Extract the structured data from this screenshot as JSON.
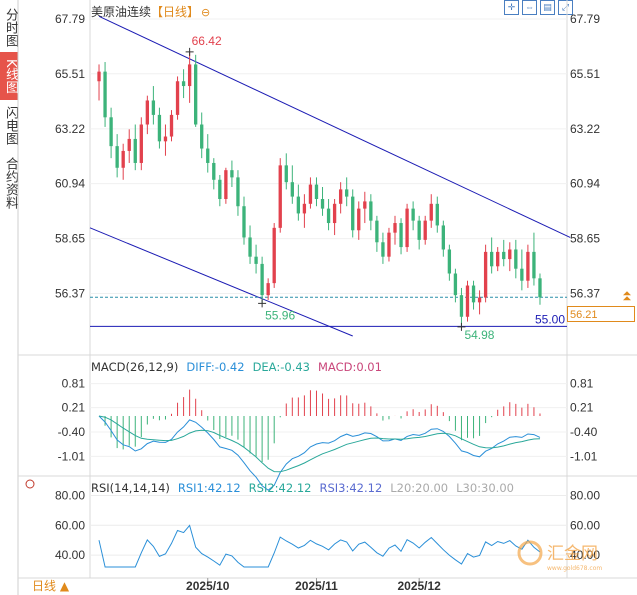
{
  "sidebar": {
    "tabs": [
      {
        "label": "分时图",
        "active": false
      },
      {
        "label": "K线图",
        "active": true
      },
      {
        "label": "闪电图",
        "active": false
      },
      {
        "label": "合约资料",
        "active": false
      }
    ]
  },
  "header": {
    "name": "美原油连续",
    "timeframe": "【日线】",
    "tools": [
      "crosshair-icon",
      "expand-icon",
      "chart-icon",
      "fullscreen-icon"
    ]
  },
  "current_price": "56.21",
  "bottom_tab": "日线",
  "watermark": {
    "text": "汇金网",
    "url": "www.gold678.com"
  },
  "colors": {
    "up": "#e2414d",
    "down": "#3cb37a",
    "channel": "#1c1cb4",
    "current_line": "#2a8fa8",
    "accent": "#e08a1c"
  },
  "chart_data": [
    {
      "type": "candlestick",
      "title": "美原油连续【日线】",
      "y_ticks": [
        "67.79",
        "65.51",
        "63.22",
        "60.94",
        "58.65",
        "56.37"
      ],
      "ylim": [
        54.6,
        67.79
      ],
      "x_ticks": [
        "2025/10",
        "2025/11",
        "2025/12"
      ],
      "x_tick_index": [
        18,
        36,
        53
      ],
      "ohlc": [
        [
          65.2,
          65.9,
          64.4,
          65.6
        ],
        [
          65.6,
          66.0,
          63.3,
          63.7
        ],
        [
          63.7,
          64.1,
          62.0,
          62.5
        ],
        [
          62.5,
          63.0,
          61.2,
          61.6
        ],
        [
          61.6,
          62.6,
          61.1,
          62.3
        ],
        [
          62.3,
          63.2,
          61.8,
          62.8
        ],
        [
          62.8,
          63.4,
          61.5,
          61.8
        ],
        [
          61.8,
          63.7,
          61.5,
          63.4
        ],
        [
          63.4,
          64.6,
          63.0,
          64.4
        ],
        [
          64.4,
          65.0,
          63.4,
          63.8
        ],
        [
          63.8,
          64.1,
          62.4,
          62.7
        ],
        [
          62.7,
          63.4,
          62.1,
          62.9
        ],
        [
          62.9,
          64.0,
          62.7,
          63.8
        ],
        [
          63.8,
          65.4,
          63.6,
          65.2
        ],
        [
          65.2,
          65.7,
          64.5,
          65.0
        ],
        [
          65.0,
          66.42,
          64.3,
          65.9
        ],
        [
          65.9,
          66.3,
          63.3,
          63.4
        ],
        [
          63.4,
          63.9,
          62.0,
          62.4
        ],
        [
          62.4,
          63.0,
          61.4,
          61.8
        ],
        [
          61.8,
          62.0,
          60.7,
          61.1
        ],
        [
          61.1,
          61.3,
          60.0,
          60.3
        ],
        [
          60.3,
          61.6,
          60.1,
          61.5
        ],
        [
          61.5,
          61.9,
          60.8,
          61.2
        ],
        [
          61.2,
          61.5,
          59.6,
          60.0
        ],
        [
          60.0,
          60.4,
          58.4,
          58.7
        ],
        [
          58.7,
          59.2,
          57.6,
          57.9
        ],
        [
          57.9,
          58.4,
          57.2,
          57.6
        ],
        [
          57.6,
          57.9,
          55.96,
          56.3
        ],
        [
          56.3,
          57.0,
          56.1,
          56.8
        ],
        [
          56.8,
          59.3,
          56.6,
          59.1
        ],
        [
          59.1,
          62.0,
          58.9,
          61.7
        ],
        [
          61.7,
          62.2,
          60.7,
          61.0
        ],
        [
          61.0,
          61.7,
          60.1,
          60.4
        ],
        [
          60.4,
          60.9,
          59.4,
          59.7
        ],
        [
          59.7,
          60.5,
          59.1,
          60.1
        ],
        [
          60.1,
          61.2,
          59.9,
          60.9
        ],
        [
          60.9,
          61.2,
          60.0,
          60.3
        ],
        [
          60.3,
          60.8,
          59.6,
          59.9
        ],
        [
          59.9,
          60.3,
          59.0,
          59.3
        ],
        [
          59.3,
          60.3,
          58.8,
          60.1
        ],
        [
          60.1,
          61.0,
          59.7,
          60.7
        ],
        [
          60.7,
          61.2,
          60.0,
          60.4
        ],
        [
          60.4,
          60.7,
          58.7,
          59.0
        ],
        [
          59.0,
          60.2,
          58.6,
          59.9
        ],
        [
          59.9,
          60.6,
          59.3,
          60.2
        ],
        [
          60.2,
          60.5,
          59.0,
          59.4
        ],
        [
          59.4,
          59.6,
          58.1,
          58.5
        ],
        [
          58.5,
          58.9,
          57.6,
          57.9
        ],
        [
          57.9,
          59.1,
          57.7,
          58.9
        ],
        [
          58.9,
          59.6,
          58.4,
          59.3
        ],
        [
          59.3,
          59.5,
          58.0,
          58.3
        ],
        [
          58.3,
          60.1,
          58.1,
          59.9
        ],
        [
          59.9,
          60.2,
          59.0,
          59.4
        ],
        [
          59.4,
          59.6,
          58.2,
          58.6
        ],
        [
          58.6,
          59.6,
          58.4,
          59.4
        ],
        [
          59.4,
          60.5,
          59.1,
          60.1
        ],
        [
          60.1,
          60.4,
          58.9,
          59.2
        ],
        [
          59.2,
          59.4,
          57.9,
          58.2
        ],
        [
          58.2,
          58.4,
          56.9,
          57.2
        ],
        [
          57.2,
          57.4,
          56.0,
          56.3
        ],
        [
          56.3,
          56.6,
          54.98,
          55.4
        ],
        [
          55.4,
          56.9,
          55.2,
          56.7
        ],
        [
          56.7,
          56.9,
          55.7,
          56.0
        ],
        [
          56.0,
          56.5,
          55.5,
          56.2
        ],
        [
          56.2,
          58.4,
          56.0,
          58.1
        ],
        [
          58.1,
          58.7,
          57.2,
          57.5
        ],
        [
          57.5,
          58.3,
          57.3,
          58.1
        ],
        [
          58.1,
          58.6,
          57.5,
          57.8
        ],
        [
          57.8,
          58.5,
          57.3,
          58.2
        ],
        [
          58.2,
          58.6,
          57.0,
          57.4
        ],
        [
          57.4,
          58.2,
          56.5,
          56.9
        ],
        [
          56.9,
          58.4,
          56.6,
          58.1
        ],
        [
          58.1,
          58.9,
          56.7,
          57.0
        ],
        [
          57.0,
          57.2,
          55.9,
          56.21
        ]
      ],
      "labels": {
        "high": "66.42",
        "low1": "55.96",
        "low2": "54.98",
        "support": "55.00"
      },
      "lines": {
        "upper_channel": [
          [
            0,
            67.9
          ],
          [
            78,
            58.7
          ]
        ],
        "lower_channel": [
          [
            0,
            59.1
          ],
          [
            42,
            54.6
          ]
        ],
        "support": 55.0,
        "current": 56.21
      }
    },
    {
      "type": "bar+line",
      "title": "MACD(26,12,9)",
      "legend": {
        "diff": "DIFF:-0.42",
        "dea": "DEA:-0.43",
        "macd": "MACD:0.01"
      },
      "y_ticks": [
        "0.81",
        "0.21",
        "-0.40",
        "-1.01"
      ],
      "ylim": [
        -1.3,
        1.1
      ]
    },
    {
      "type": "line",
      "title": "RSI(14,14,14)",
      "legend": {
        "rsi1": "RSI1:42.12",
        "rsi2": "RSI2:42.12",
        "rsi3": "RSI3:42.12",
        "l20": "L20:20.00",
        "l30": "L30:30.00"
      },
      "y_ticks": [
        "80.00",
        "60.00",
        "40.00"
      ],
      "ylim": [
        30,
        85
      ]
    }
  ]
}
